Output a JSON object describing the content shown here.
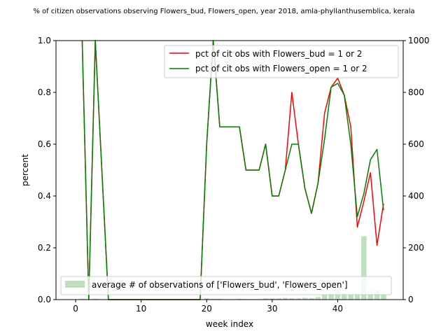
{
  "chart_data": {
    "type": "line",
    "title": "% of citizen observations observing Flowers_bud, Flowers_open, year 2018, amla-phyllanthusemblica, kerala",
    "xlabel": "week index",
    "ylabel": "percent",
    "y2label": "",
    "xlim": [
      -3,
      50
    ],
    "ylim": [
      0,
      1.0
    ],
    "y2lim": [
      0,
      1000
    ],
    "x_ticks": [
      0,
      10,
      20,
      30,
      40
    ],
    "y_ticks": [
      0.0,
      0.2,
      0.4,
      0.6,
      0.8,
      1.0
    ],
    "y2_ticks": [
      0,
      200,
      400,
      600,
      800,
      1000
    ],
    "x_tick_labels": [
      "0",
      "10",
      "20",
      "30",
      "40"
    ],
    "y_tick_labels": [
      "0.0",
      "0.2",
      "0.4",
      "0.6",
      "0.8",
      "1.0"
    ],
    "y2_tick_labels": [
      "0",
      "200",
      "400",
      "600",
      "800",
      "1000"
    ],
    "legend_top": "top-right",
    "legend_bottom": "bottom-left",
    "grid": false,
    "series": [
      {
        "name": "pct of cit obs with Flowers_bud = 1 or 2",
        "color": "#ff0000",
        "points": [
          [
            1,
            1.0
          ],
          [
            2,
            0.0
          ],
          [
            3,
            1.0
          ],
          [
            4,
            0.5
          ],
          [
            5,
            0.0
          ],
          [
            6,
            0.0
          ],
          [
            7,
            0.0
          ],
          [
            8,
            0.0
          ],
          [
            9,
            0.0
          ],
          [
            10,
            0.0
          ],
          [
            11,
            0.0
          ],
          [
            12,
            0.0
          ],
          [
            13,
            0.0
          ],
          [
            14,
            0.0
          ],
          [
            15,
            0.0
          ],
          [
            16,
            0.0
          ],
          [
            17,
            0.0
          ],
          [
            18,
            0.0
          ],
          [
            19,
            0.0
          ],
          [
            20,
            0.6
          ],
          [
            21,
            1.0
          ],
          [
            22,
            0.667
          ],
          [
            23,
            0.667
          ],
          [
            24,
            0.667
          ],
          [
            25,
            0.667
          ],
          [
            26,
            0.5
          ],
          [
            27,
            0.5
          ],
          [
            28,
            0.5
          ],
          [
            29,
            0.6
          ],
          [
            30,
            0.4
          ],
          [
            31,
            0.4
          ],
          [
            32,
            0.5
          ],
          [
            33,
            0.8
          ],
          [
            34,
            0.6
          ],
          [
            35,
            0.429
          ],
          [
            36,
            0.333
          ],
          [
            37,
            0.45
          ],
          [
            38,
            0.72
          ],
          [
            39,
            0.82
          ],
          [
            40,
            0.855
          ],
          [
            41,
            0.79
          ],
          [
            42,
            0.667
          ],
          [
            43,
            0.28
          ],
          [
            44,
            0.38
          ],
          [
            45,
            0.49
          ],
          [
            46,
            0.21
          ],
          [
            47,
            0.37
          ]
        ]
      },
      {
        "name": "pct of cit obs with Flowers_open = 1 or 2",
        "color": "#008000",
        "points": [
          [
            1,
            1.0
          ],
          [
            2,
            0.0
          ],
          [
            3,
            1.0
          ],
          [
            4,
            0.5
          ],
          [
            5,
            0.0
          ],
          [
            6,
            0.0
          ],
          [
            7,
            0.0
          ],
          [
            8,
            0.0
          ],
          [
            9,
            0.0
          ],
          [
            10,
            0.0
          ],
          [
            11,
            0.0
          ],
          [
            12,
            0.0
          ],
          [
            13,
            0.0
          ],
          [
            14,
            0.0
          ],
          [
            15,
            0.0
          ],
          [
            16,
            0.0
          ],
          [
            17,
            0.0
          ],
          [
            18,
            0.0
          ],
          [
            19,
            0.0
          ],
          [
            20,
            0.6
          ],
          [
            21,
            1.0
          ],
          [
            22,
            0.667
          ],
          [
            23,
            0.667
          ],
          [
            24,
            0.667
          ],
          [
            25,
            0.667
          ],
          [
            26,
            0.5
          ],
          [
            27,
            0.5
          ],
          [
            28,
            0.5
          ],
          [
            29,
            0.6
          ],
          [
            30,
            0.4
          ],
          [
            31,
            0.4
          ],
          [
            32,
            0.5
          ],
          [
            33,
            0.6
          ],
          [
            34,
            0.6
          ],
          [
            35,
            0.429
          ],
          [
            36,
            0.333
          ],
          [
            37,
            0.45
          ],
          [
            38,
            0.62
          ],
          [
            39,
            0.82
          ],
          [
            40,
            0.835
          ],
          [
            41,
            0.79
          ],
          [
            42,
            0.6
          ],
          [
            43,
            0.32
          ],
          [
            44,
            0.41
          ],
          [
            45,
            0.54
          ],
          [
            46,
            0.58
          ],
          [
            47,
            0.345
          ]
        ]
      }
    ],
    "bars": {
      "name": "average # of observations of ['Flowers_bud', 'Flowers_open']",
      "color": "#008000",
      "opacity": 0.25,
      "axis": "right",
      "x": [
        1,
        2,
        3,
        4,
        5,
        20,
        21,
        22,
        25,
        26,
        27,
        28,
        29,
        30,
        31,
        32,
        33,
        34,
        35,
        36,
        37,
        38,
        39,
        40,
        41,
        42,
        43,
        44,
        45,
        46,
        47
      ],
      "values": [
        3,
        1,
        3,
        2,
        1,
        5,
        3,
        3,
        3,
        2,
        2,
        2,
        5,
        5,
        5,
        6,
        5,
        5,
        7,
        6,
        10,
        20,
        25,
        30,
        24,
        20,
        25,
        245,
        35,
        35,
        20
      ]
    }
  }
}
